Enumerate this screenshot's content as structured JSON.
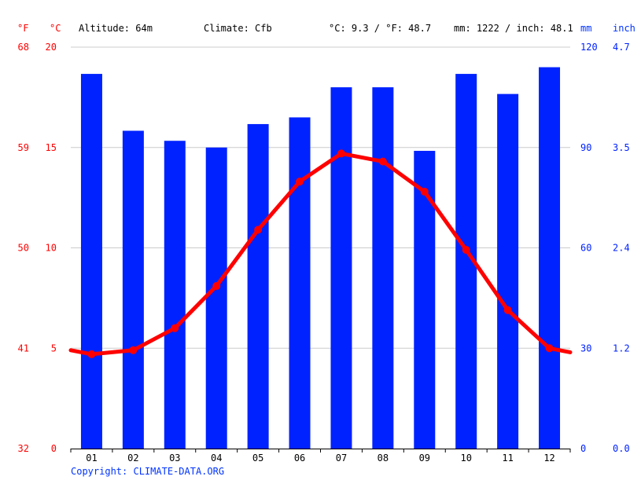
{
  "colors": {
    "temp": "#ff0000",
    "precip": "#0022ff",
    "grid": "#cccccc",
    "axis": "#000000",
    "copyright": "#0033ff"
  },
  "header": {
    "unit_f": "°F",
    "unit_c": "°C",
    "altitude": "Altitude: 64m",
    "climate": "Climate: Cfb",
    "temp_avg": "°C: 9.3 / °F: 48.7",
    "precip_total": "mm: 1222 / inch: 48.1",
    "unit_mm": "mm",
    "unit_inch": "inch"
  },
  "copyright": "Copyright: CLIMATE-DATA.ORG",
  "chart_data": {
    "type": "bar",
    "categories": [
      "01",
      "02",
      "03",
      "04",
      "05",
      "06",
      "07",
      "08",
      "09",
      "10",
      "11",
      "12"
    ],
    "series": [
      {
        "type": "bar",
        "axis": "right",
        "unit": "mm",
        "values": [
          112,
          95,
          92,
          90,
          97,
          99,
          108,
          108,
          89,
          112,
          106,
          114
        ]
      },
      {
        "type": "line",
        "axis": "left",
        "unit": "°C",
        "values": [
          4.7,
          4.9,
          6.0,
          8.1,
          10.9,
          13.3,
          14.7,
          14.3,
          12.8,
          9.9,
          6.9,
          5.0
        ],
        "edge_left": 4.9,
        "edge_right": 4.8
      }
    ],
    "axes": {
      "left_c": {
        "min": 0,
        "max": 20,
        "ticks": [
          "0",
          "5",
          "10",
          "15",
          "20"
        ]
      },
      "left_f": {
        "ticks": [
          "32",
          "41",
          "50",
          "59",
          "68"
        ]
      },
      "right_mm": {
        "min": 0,
        "max": 120,
        "ticks": [
          "0",
          "30",
          "60",
          "90",
          "120"
        ]
      },
      "right_inch": {
        "ticks": [
          "0.0",
          "1.2",
          "2.4",
          "3.5",
          "4.7"
        ]
      }
    },
    "grid": true,
    "legend": "none"
  }
}
